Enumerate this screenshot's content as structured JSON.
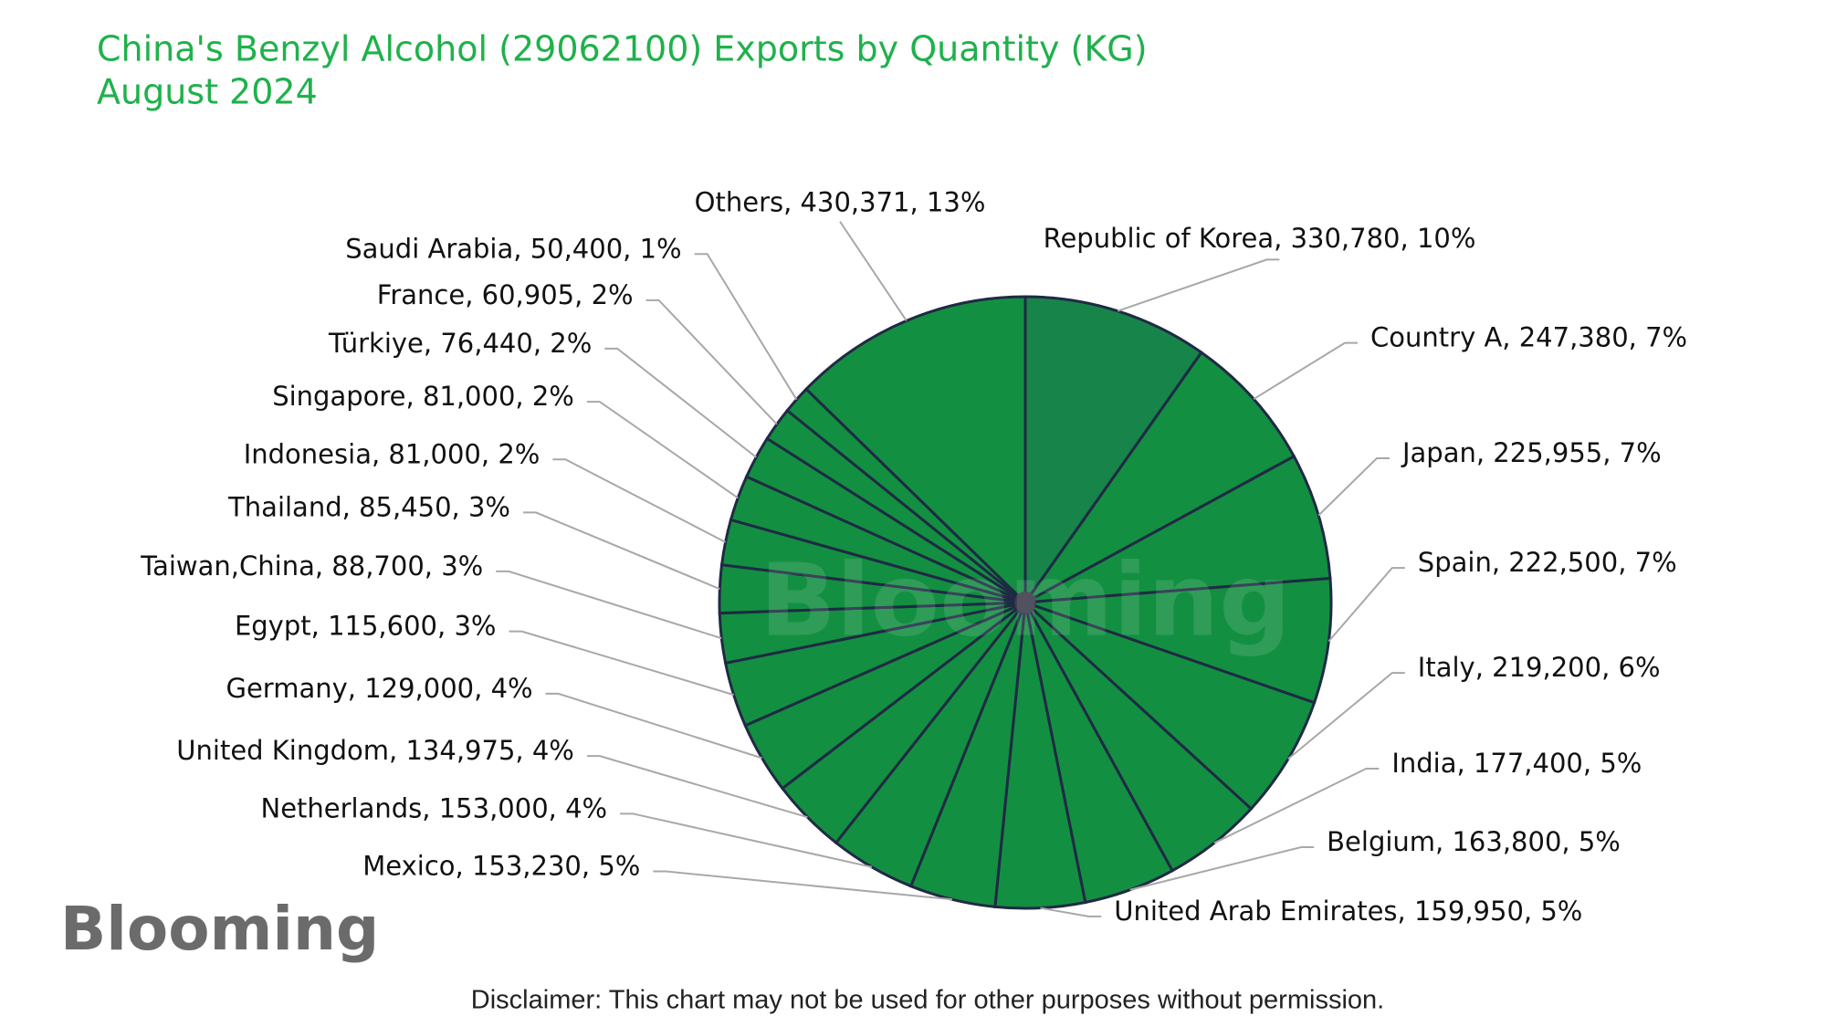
{
  "chart_data": {
    "type": "pie",
    "title": "China's Benzyl Alcohol (29062100) Exports by Quantity (KG)",
    "subtitle": "August 2024",
    "categories": [
      "Republic of Korea",
      "Country A",
      "Japan",
      "Spain",
      "Italy",
      "India",
      "Belgium",
      "United Arab Emirates",
      "Mexico",
      "Netherlands",
      "United Kingdom",
      "Germany",
      "Egypt",
      "Taiwan,China",
      "Thailand",
      "Indonesia",
      "Singapore",
      "Türkiye",
      "France",
      "Saudi Arabia",
      "Others"
    ],
    "values": [
      330780,
      247380,
      225955,
      222500,
      219200,
      177400,
      163800,
      159950,
      153230,
      153000,
      134975,
      129000,
      115600,
      88700,
      85450,
      81000,
      81000,
      76440,
      60905,
      50400,
      430371
    ],
    "value_labels": [
      "330,780",
      "247,380",
      "225,955",
      "222,500",
      "219,200",
      "177,400",
      "163,800",
      "159,950",
      "153,230",
      "153,000",
      "134,975",
      "129,000",
      "115,600",
      "88,700",
      "85,450",
      "81,000",
      "81,000",
      "76,440",
      "60,905",
      "50,400",
      "430,371"
    ],
    "percent_labels": [
      "10%",
      "7%",
      "7%",
      "7%",
      "6%",
      "5%",
      "5%",
      "5%",
      "5%",
      "4%",
      "4%",
      "4%",
      "3%",
      "3%",
      "3%",
      "2%",
      "2%",
      "2%",
      "2%",
      "1%",
      "13%"
    ],
    "colors": [
      "#17844a",
      "#138f41",
      "#138f41",
      "#138f41",
      "#138f41",
      "#138f41",
      "#138f41",
      "#138f41",
      "#138f41",
      "#138f41",
      "#138f41",
      "#138f41",
      "#138f41",
      "#138f41",
      "#138f41",
      "#138f41",
      "#138f41",
      "#138f41",
      "#138f41",
      "#138f41",
      "#138f41"
    ],
    "watermark": "Blooming",
    "logo": "Blooming",
    "disclaimer": "Disclaimer: This chart may not be used for other purposes without permission."
  }
}
